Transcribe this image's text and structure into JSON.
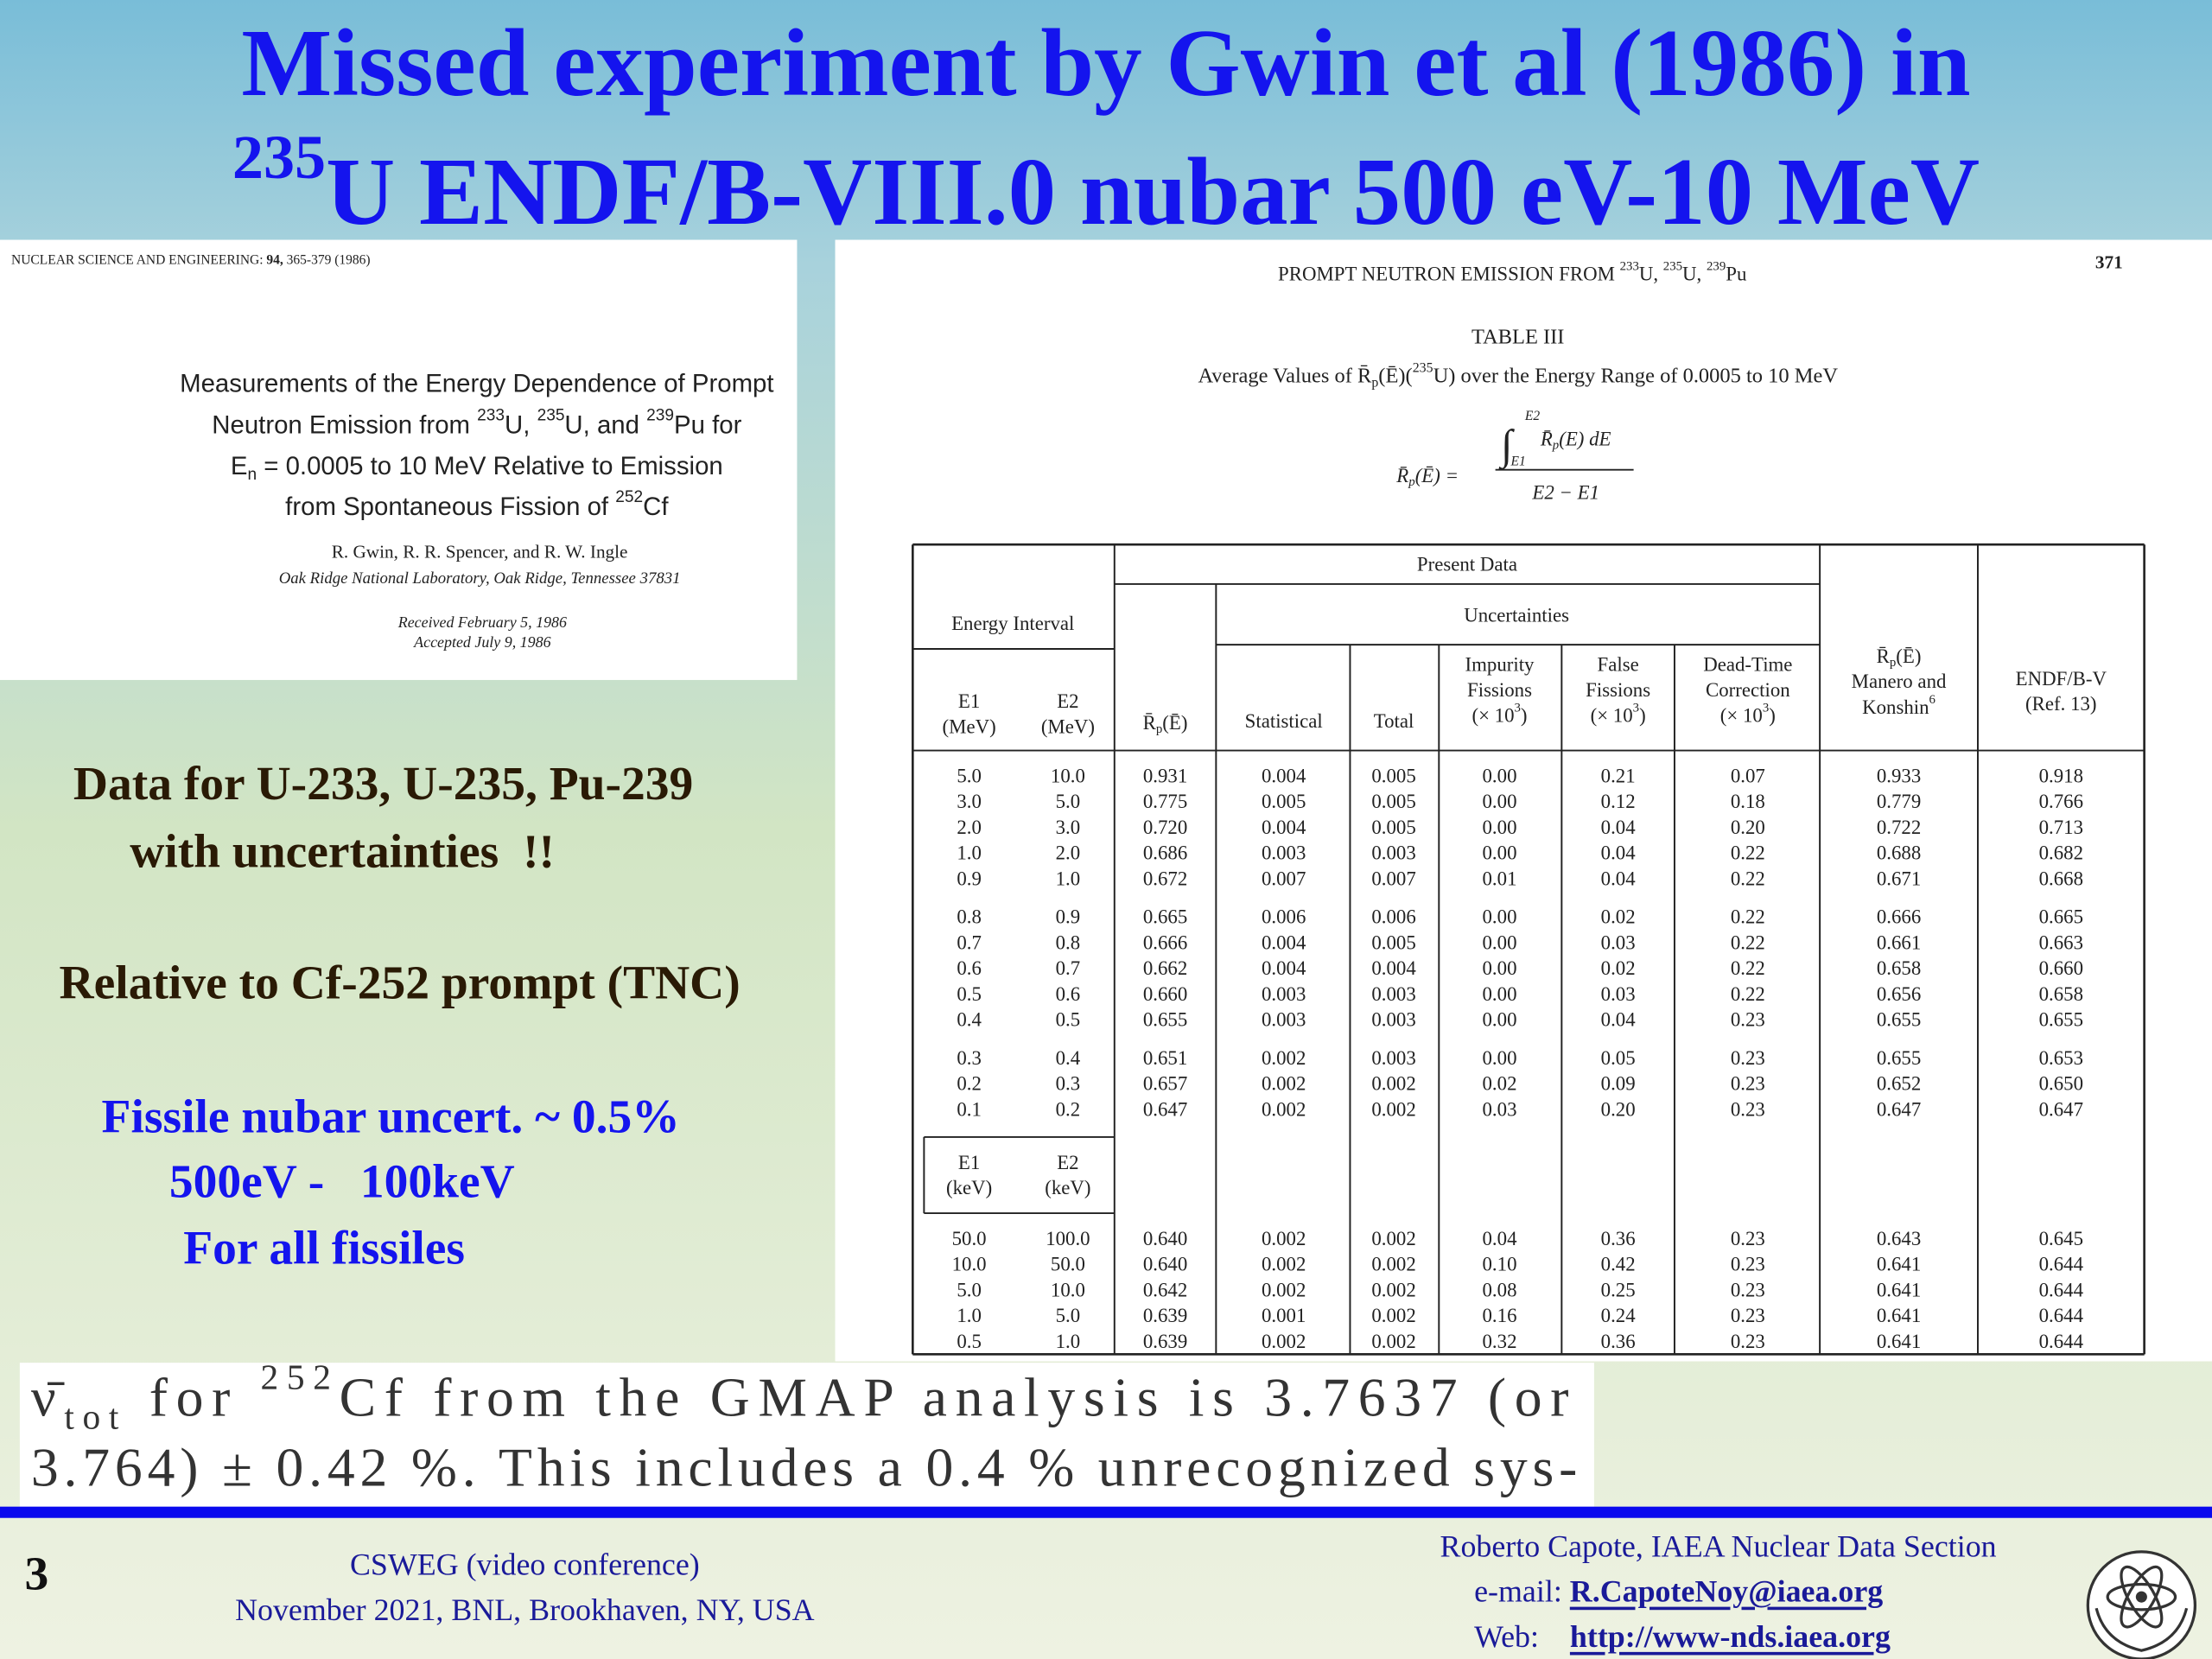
{
  "title": {
    "line1": "Missed experiment by Gwin et al (1986) in",
    "line2": [
      {
        "sup": "235"
      },
      "U ENDF/B-VIII.0 nubar 500 eV-10 MeV"
    ]
  },
  "paper": {
    "journal": [
      "NUCLEAR SCIENCE AND ENGINEERING: ",
      {
        "bold": "94,"
      },
      " 365-379 (1986)"
    ],
    "title_lines": [
      "Measurements of the Energy Dependence of Prompt",
      [
        "Neutron Emission from ",
        {
          "sup": "233"
        },
        "U, ",
        {
          "sup": "235"
        },
        "U, and ",
        {
          "sup": "239"
        },
        "Pu for"
      ],
      [
        "E",
        {
          "sub": "n"
        },
        " = 0.0005 to 10 MeV Relative to Emission"
      ],
      [
        "from Spontaneous Fission of ",
        {
          "sup": "252"
        },
        "Cf"
      ]
    ],
    "authors": "R. Gwin, R. R. Spencer, and R. W. Ingle",
    "affiliation": "Oak Ridge National Laboratory, Oak Ridge, Tennessee 37831",
    "received": "Received February 5, 1986",
    "accepted": "Accepted July 9, 1986"
  },
  "page": {
    "running_head": [
      "PROMPT NEUTRON EMISSION FROM ",
      {
        "sup": "233"
      },
      "U, ",
      {
        "sup": "235"
      },
      "U, ",
      {
        "sup": "239"
      },
      "Pu"
    ],
    "page_number": "371",
    "table_label": "TABLE III",
    "caption": [
      "Average Values of R̄",
      {
        "sub": "p"
      },
      "(Ē)(",
      {
        "sup": "235"
      },
      "U) over the Energy Range of 0.0005 to 10 MeV"
    ],
    "formula": {
      "lhs": [
        "R̄",
        {
          "sub": "p"
        },
        "(Ē) ="
      ],
      "integral": "∫",
      "upper": "E2",
      "lower": "E1",
      "integrand": [
        "R̄",
        {
          "sub": "p"
        },
        "(E) dE"
      ],
      "denominator": "E2 − E1"
    }
  },
  "table": {
    "energy_interval": "Energy Interval",
    "present_data": "Present Data",
    "uncertainties": "Uncertainties",
    "columns": [
      [
        "E1",
        "(MeV)"
      ],
      [
        "E2",
        "(MeV)"
      ],
      [
        [
          "R̄",
          {
            "sub": "p"
          },
          "(Ē)"
        ]
      ],
      [
        "Statistical"
      ],
      [
        "Total"
      ],
      [
        "Impurity",
        "Fissions",
        [
          "(× 10",
          {
            "sup": "3"
          },
          ")"
        ]
      ],
      [
        "False",
        "Fissions",
        [
          "(× 10",
          {
            "sup": "3"
          },
          ")"
        ]
      ],
      [
        "Dead-Time",
        "Correction",
        [
          "(× 10",
          {
            "sup": "3"
          },
          ")"
        ]
      ],
      [
        [
          "R̄",
          {
            "sub": "p"
          },
          "(Ē)"
        ],
        "Manero and",
        [
          "Konshin",
          {
            "sup": "6"
          }
        ]
      ],
      [
        "ENDF/B-V",
        "(Ref. 13)"
      ]
    ],
    "kev_columns": [
      [
        "E1",
        "(keV)"
      ],
      [
        "E2",
        "(keV)"
      ]
    ],
    "groups": [
      [
        [
          "5.0",
          "10.0",
          "0.931",
          "0.004",
          "0.005",
          "0.00",
          "0.21",
          "0.07",
          "0.933",
          "0.918"
        ],
        [
          "3.0",
          "5.0",
          "0.775",
          "0.005",
          "0.005",
          "0.00",
          "0.12",
          "0.18",
          "0.779",
          "0.766"
        ],
        [
          "2.0",
          "3.0",
          "0.720",
          "0.004",
          "0.005",
          "0.00",
          "0.04",
          "0.20",
          "0.722",
          "0.713"
        ],
        [
          "1.0",
          "2.0",
          "0.686",
          "0.003",
          "0.003",
          "0.00",
          "0.04",
          "0.22",
          "0.688",
          "0.682"
        ],
        [
          "0.9",
          "1.0",
          "0.672",
          "0.007",
          "0.007",
          "0.01",
          "0.04",
          "0.22",
          "0.671",
          "0.668"
        ]
      ],
      [
        [
          "0.8",
          "0.9",
          "0.665",
          "0.006",
          "0.006",
          "0.00",
          "0.02",
          "0.22",
          "0.666",
          "0.665"
        ],
        [
          "0.7",
          "0.8",
          "0.666",
          "0.004",
          "0.005",
          "0.00",
          "0.03",
          "0.22",
          "0.661",
          "0.663"
        ],
        [
          "0.6",
          "0.7",
          "0.662",
          "0.004",
          "0.004",
          "0.00",
          "0.02",
          "0.22",
          "0.658",
          "0.660"
        ],
        [
          "0.5",
          "0.6",
          "0.660",
          "0.003",
          "0.003",
          "0.00",
          "0.03",
          "0.22",
          "0.656",
          "0.658"
        ],
        [
          "0.4",
          "0.5",
          "0.655",
          "0.003",
          "0.003",
          "0.00",
          "0.04",
          "0.23",
          "0.655",
          "0.655"
        ]
      ],
      [
        [
          "0.3",
          "0.4",
          "0.651",
          "0.002",
          "0.003",
          "0.00",
          "0.05",
          "0.23",
          "0.655",
          "0.653"
        ],
        [
          "0.2",
          "0.3",
          "0.657",
          "0.002",
          "0.002",
          "0.02",
          "0.09",
          "0.23",
          "0.652",
          "0.650"
        ],
        [
          "0.1",
          "0.2",
          "0.647",
          "0.002",
          "0.002",
          "0.03",
          "0.20",
          "0.23",
          "0.647",
          "0.647"
        ]
      ],
      [
        [
          "50.0",
          "100.0",
          "0.640",
          "0.002",
          "0.002",
          "0.04",
          "0.36",
          "0.23",
          "0.643",
          "0.645"
        ],
        [
          "10.0",
          "50.0",
          "0.640",
          "0.002",
          "0.002",
          "0.10",
          "0.42",
          "0.23",
          "0.641",
          "0.644"
        ],
        [
          "5.0",
          "10.0",
          "0.642",
          "0.002",
          "0.002",
          "0.08",
          "0.25",
          "0.23",
          "0.641",
          "0.644"
        ],
        [
          "1.0",
          "5.0",
          "0.639",
          "0.001",
          "0.002",
          "0.16",
          "0.24",
          "0.23",
          "0.641",
          "0.644"
        ],
        [
          "0.5",
          "1.0",
          "0.639",
          "0.002",
          "0.002",
          "0.32",
          "0.36",
          "0.23",
          "0.641",
          "0.644"
        ]
      ]
    ]
  },
  "notes": {
    "data": [
      "Data for U-233, U-235, Pu-239",
      "with uncertainties  !!"
    ],
    "relative": "Relative to Cf-252 prompt (TNC)",
    "fissile": [
      "Fissile nubar uncert. ~ 0.5%",
      "500eV -   100keV",
      "For all fissiles"
    ]
  },
  "excerpt": [
    [
      "ν̄",
      {
        "sub": "tot"
      },
      " for ",
      {
        "sup": "252"
      },
      "Cf from the GMAP analysis is 3.7637 (or"
    ],
    "3.764) ± 0.42 %. This includes a 0.4 % unrecognized sys-"
  ],
  "footer": {
    "slide_number": "3",
    "event": "CSWEG (video conference)",
    "date_place": "November 2021, BNL, Brookhaven, NY, USA",
    "author": "Roberto Capote, IAEA Nuclear Data Section",
    "email_label": "e-mail: ",
    "email": "R.CapoteNoy@iaea.org",
    "web_label": "Web:    ",
    "web": "http://www-nds.iaea.org"
  }
}
